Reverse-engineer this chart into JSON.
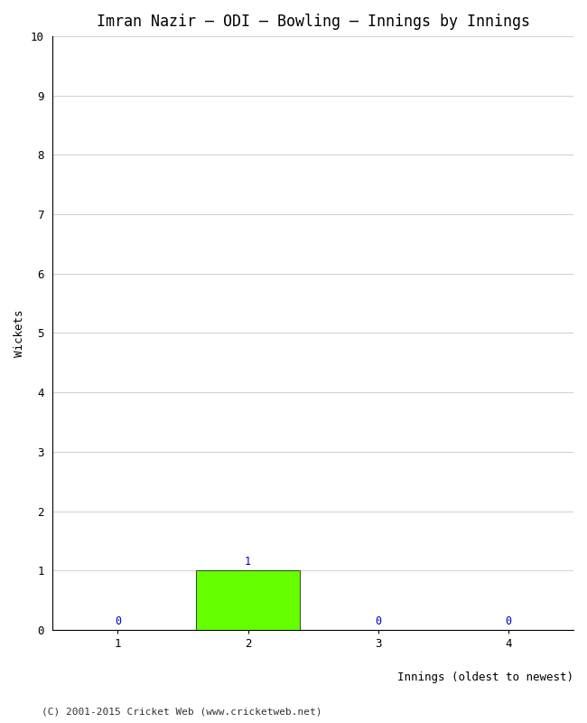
{
  "title": "Imran Nazir – ODI – Bowling – Innings by Innings",
  "xlabel": "Innings (oldest to newest)",
  "ylabel": "Wickets",
  "categories": [
    1,
    2,
    3,
    4
  ],
  "values": [
    0,
    1,
    0,
    0
  ],
  "bar_color": "#66ff00",
  "bar_edge_color": "#000000",
  "ylim": [
    0,
    10
  ],
  "yticks": [
    0,
    1,
    2,
    3,
    4,
    5,
    6,
    7,
    8,
    9,
    10
  ],
  "label_color": "#0000cc",
  "label_fontsize": 8.5,
  "title_fontsize": 12,
  "axis_label_fontsize": 9,
  "tick_fontsize": 9,
  "footer": "(C) 2001-2015 Cricket Web (www.cricketweb.net)",
  "footer_fontsize": 8,
  "background_color": "#ffffff",
  "grid_color": "#d3d3d3",
  "font_family": "monospace"
}
